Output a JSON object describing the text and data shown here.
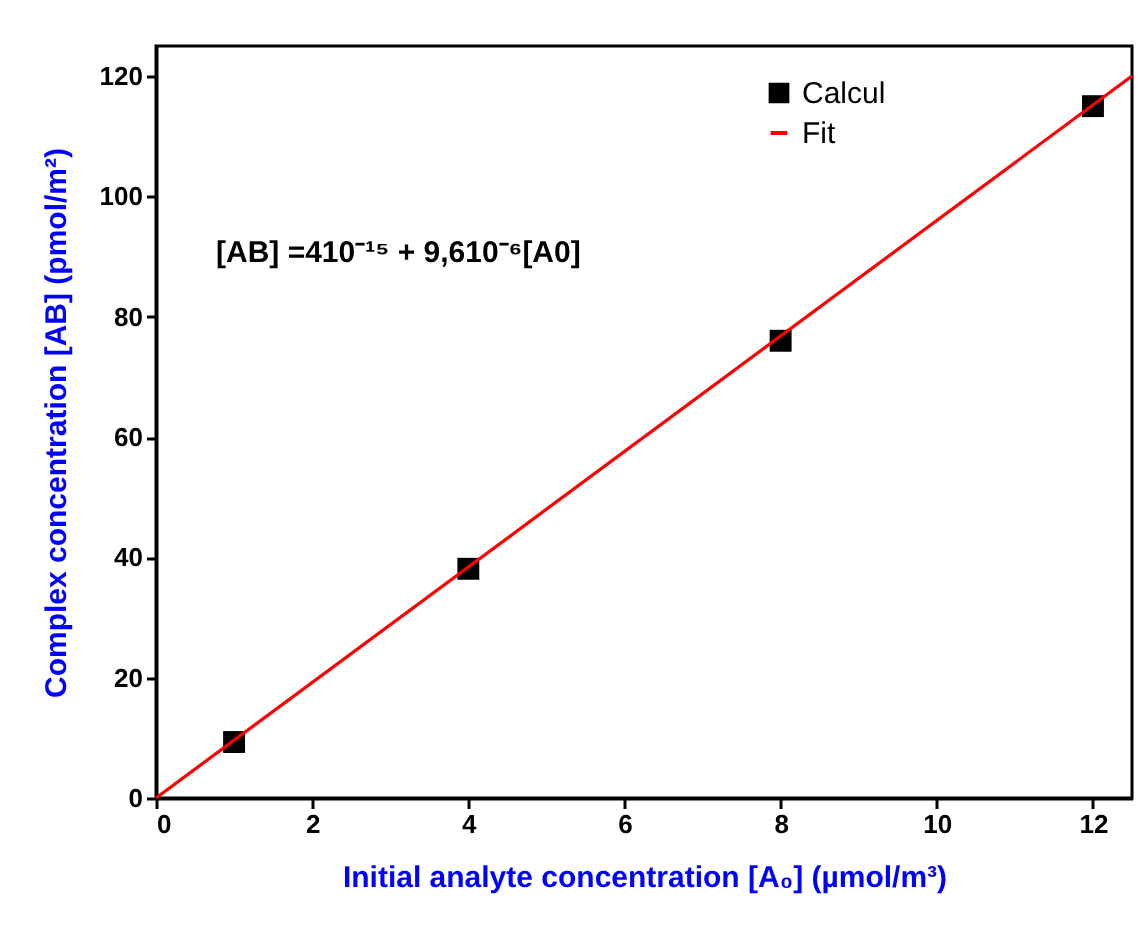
{
  "chart_data": {
    "type": "scatter",
    "xlabel": "Initial analyte concentration [A₀] (µmol/m³)",
    "ylabel": "Complex concentration [AB] (pmol/m²)",
    "xlim": [
      0,
      12.5
    ],
    "ylim": [
      0,
      125
    ],
    "xticks": [
      0,
      2,
      4,
      6,
      8,
      10,
      12
    ],
    "yticks": [
      0,
      20,
      40,
      60,
      80,
      100,
      120
    ],
    "series": [
      {
        "name": "Calcul",
        "color": "#000000",
        "marker": "square",
        "x": [
          1,
          4,
          8,
          12
        ],
        "values": [
          9.3,
          38.1,
          76.0,
          115.0
        ]
      },
      {
        "name": "Fit",
        "type": "line",
        "color": "#ff0000",
        "line_style": "solid",
        "x": [
          0,
          12.5
        ],
        "values": [
          0,
          120
        ]
      }
    ],
    "annotations": [
      "[AB] =410⁻¹⁵ + 9,610⁻⁶[A0]"
    ],
    "legend": "top right",
    "grid": false
  }
}
